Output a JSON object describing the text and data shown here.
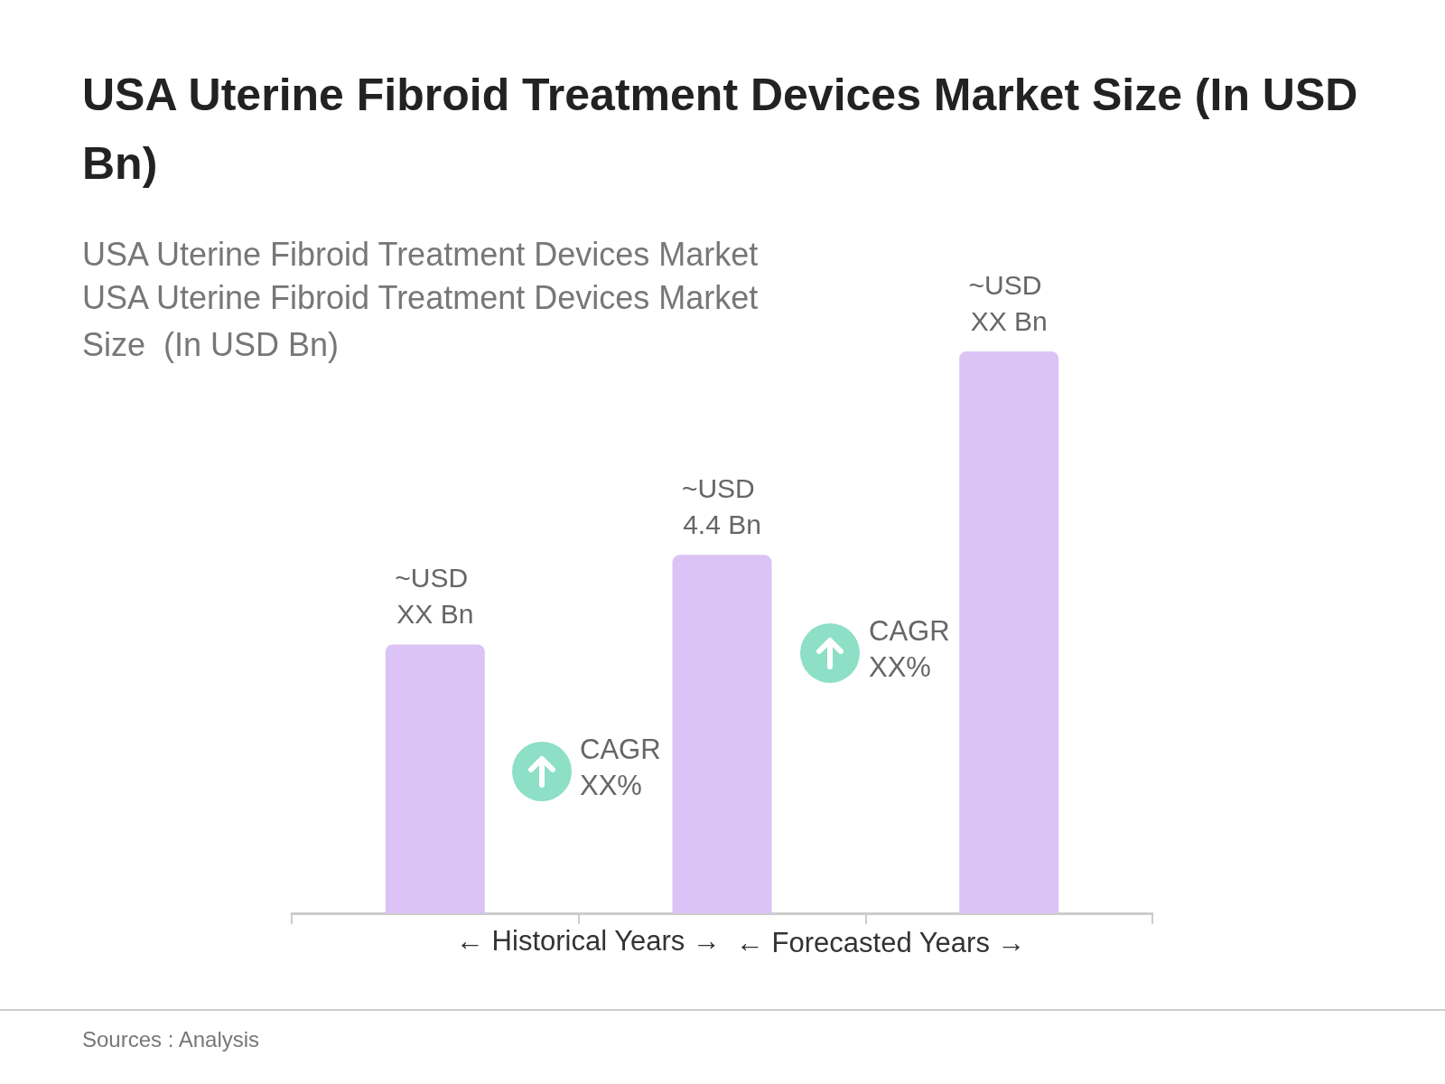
{
  "chart_data": {
    "type": "bar",
    "title": "USA Uterine Fibroid Treatment Devices Market Size (In USD Bn)",
    "subtitle": "USA Uterine Fibroid Treatment Devices Market\nUSA Uterine Fibroid Treatment Devices Market Size  (In USD Bn)",
    "categories": [
      null,
      null,
      null
    ],
    "values": [
      3.3,
      4.4,
      6.9
    ],
    "value_labels": [
      "~USD XX Bn",
      "~USD 4.4 Bn",
      "~USD XX Bn"
    ],
    "color": "#dcc3f5",
    "tick_labels": false,
    "annotations": [
      "CAGR XX%",
      "CAGR XX%",
      "← Historical Years →",
      "← Forecasted Years →",
      "Sources : Analysis"
    ]
  }
}
